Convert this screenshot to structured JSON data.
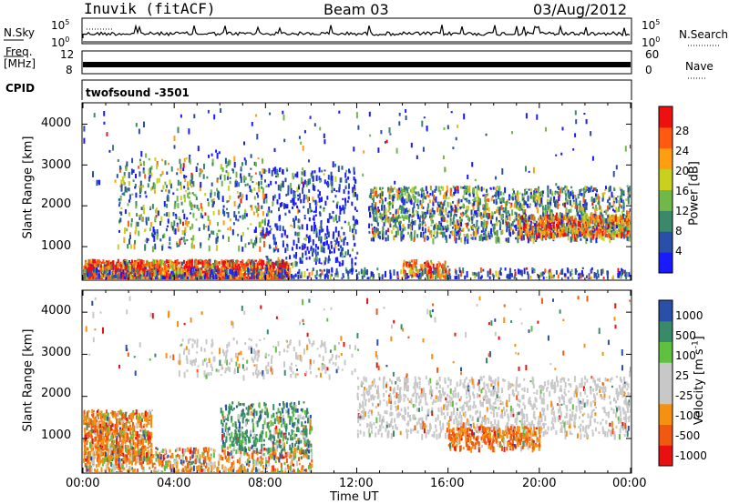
{
  "header": {
    "title": "Inuvik (fitACF)",
    "beam": "Beam 03",
    "date": "03/Aug/2012"
  },
  "aux": {
    "nsky_label": "N.Sky",
    "nsky_ticks": [
      "10^5",
      "10^0"
    ],
    "nsearch_label": "N.Search",
    "freq_label_1": "Freq.",
    "freq_label_2": "[MHz]",
    "freq_ticks": [
      "12",
      "8"
    ],
    "nave_label": "Nave",
    "nave_ticks": [
      "60",
      "0"
    ],
    "cpid_label": "CPID",
    "cpid_value": "twofsound  -3501"
  },
  "colors": {
    "power_scale": [
      "#1a1aff",
      "#2a4fa8",
      "#3a8a6a",
      "#70b84a",
      "#c8d020",
      "#ff9f10",
      "#ff5a10",
      "#ee1010"
    ],
    "velocity_scale": [
      "#e81010",
      "#f05a10",
      "#f59010",
      "#c8c8c8",
      "#c8c8c8",
      "#60c040",
      "#3a8a6a",
      "#2a4fa8"
    ],
    "ground_scatter": "#c0c0c0"
  },
  "chart_data": [
    {
      "type": "heatmap",
      "name": "power",
      "ylabel": "Slant Range [km]",
      "yticks": [
        "1000",
        "2000",
        "3000",
        "4000"
      ],
      "ylim": [
        200,
        4500
      ],
      "xlim_hours": [
        0,
        24
      ],
      "colorbar_label": "Power [dB]",
      "colorbar_ticks": [
        "4",
        "8",
        "12",
        "16",
        "20",
        "24",
        "28"
      ],
      "colorbar_range": [
        0,
        32
      ]
    },
    {
      "type": "heatmap",
      "name": "velocity",
      "ylabel": "Slant Range [km]",
      "yticks": [
        "1000",
        "2000",
        "3000",
        "4000"
      ],
      "ylim": [
        200,
        4500
      ],
      "xlim_hours": [
        0,
        24
      ],
      "colorbar_label": "Velocity [m s^-1]",
      "colorbar_ticks": [
        "-1000",
        "-500",
        "-100",
        "-25",
        "25",
        "100",
        "500",
        "1000"
      ]
    }
  ],
  "xaxis": {
    "label": "Time UT",
    "ticks": [
      "00:00",
      "04:00",
      "08:00",
      "12:00",
      "16:00",
      "20:00",
      "00:00"
    ]
  }
}
